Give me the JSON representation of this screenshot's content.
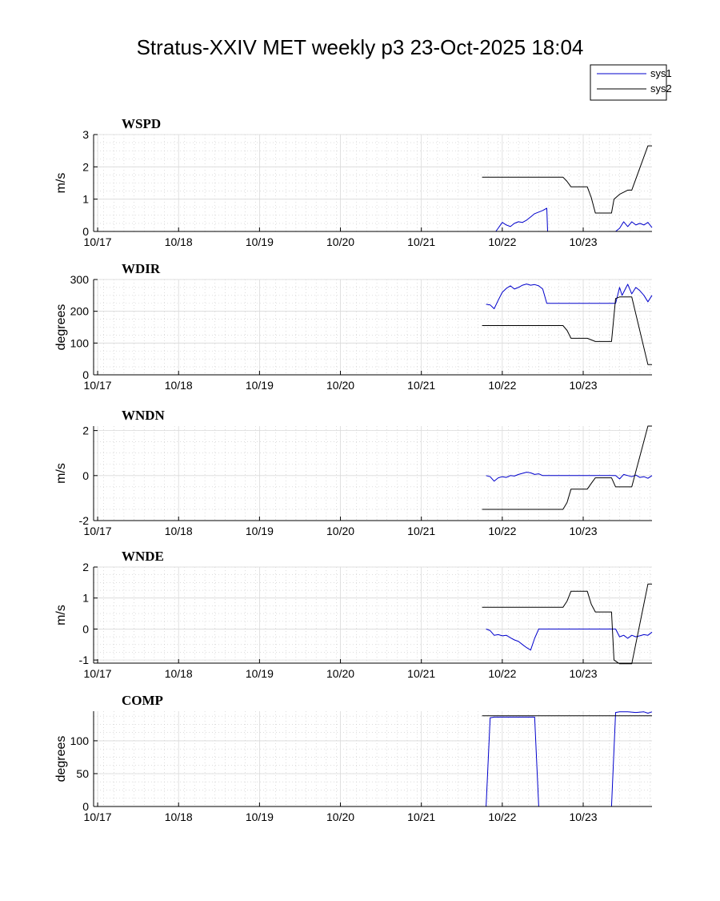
{
  "figure": {
    "title": "Stratus-XXIV MET weekly p3 23-Oct-2025 18:04",
    "legend": {
      "placement": "top-right",
      "entries": [
        {
          "name": "sys1",
          "color": "#0000cc"
        },
        {
          "name": "sys2",
          "color": "#000000"
        }
      ]
    }
  },
  "chart_data": [
    {
      "type": "line",
      "title": "WSPD",
      "ylabel": "m/s",
      "xlim": [
        -0.05,
        6.85
      ],
      "ylim": [
        0,
        3
      ],
      "yticks": [
        0,
        1,
        2,
        3
      ],
      "xticks": [
        0,
        1,
        2,
        3,
        4,
        5,
        6
      ],
      "xtick_labels": [
        "10/17",
        "10/18",
        "10/19",
        "10/20",
        "10/21",
        "10/22",
        "10/23"
      ],
      "grid": true,
      "series": [
        {
          "name": "sys1",
          "color": "#0000cc",
          "x": [
            4.85,
            4.92,
            5.0,
            5.05,
            5.1,
            5.15,
            5.2,
            5.25,
            5.3,
            5.35,
            5.4,
            5.45,
            5.5,
            5.55,
            5.56,
            5.6,
            5.7,
            5.8,
            5.9,
            6.0,
            6.1,
            6.2,
            6.3,
            6.4,
            6.45,
            6.5,
            6.55,
            6.6,
            6.65,
            6.7,
            6.75,
            6.8,
            6.85
          ],
          "y": [
            0.0,
            0.0,
            0.28,
            0.2,
            0.15,
            0.25,
            0.3,
            0.28,
            0.35,
            0.45,
            0.55,
            0.6,
            0.65,
            0.72,
            0.0,
            0.0,
            0.0,
            0.0,
            0.0,
            0.0,
            0.0,
            0.0,
            0.0,
            0.0,
            0.1,
            0.3,
            0.15,
            0.3,
            0.2,
            0.25,
            0.2,
            0.28,
            0.12
          ]
        },
        {
          "name": "sys2",
          "color": "#000000",
          "x": [
            4.75,
            5.0,
            5.5,
            5.75,
            5.8,
            5.85,
            6.05,
            6.1,
            6.15,
            6.35,
            6.38,
            6.45,
            6.55,
            6.6,
            6.8,
            6.85
          ],
          "y": [
            1.68,
            1.68,
            1.68,
            1.68,
            1.55,
            1.38,
            1.38,
            1.05,
            0.57,
            0.57,
            1.0,
            1.15,
            1.28,
            1.28,
            2.65,
            2.65
          ]
        }
      ]
    },
    {
      "type": "line",
      "title": "WDIR",
      "ylabel": "degrees",
      "xlim": [
        -0.05,
        6.85
      ],
      "ylim": [
        0,
        300
      ],
      "yticks": [
        0,
        100,
        200,
        300
      ],
      "xticks": [
        0,
        1,
        2,
        3,
        4,
        5,
        6
      ],
      "xtick_labels": [
        "10/17",
        "10/18",
        "10/19",
        "10/20",
        "10/21",
        "10/22",
        "10/23"
      ],
      "grid": true,
      "series": [
        {
          "name": "sys1",
          "color": "#0000cc",
          "x": [
            4.8,
            4.85,
            4.9,
            4.95,
            5.0,
            5.05,
            5.1,
            5.15,
            5.2,
            5.25,
            5.3,
            5.35,
            5.4,
            5.45,
            5.5,
            5.55,
            5.6,
            5.65,
            5.7,
            5.8,
            5.9,
            6.0,
            6.1,
            6.2,
            6.3,
            6.4,
            6.42,
            6.45,
            6.48,
            6.5,
            6.55,
            6.6,
            6.65,
            6.7,
            6.75,
            6.8,
            6.85
          ],
          "y": [
            222,
            220,
            208,
            235,
            260,
            272,
            280,
            270,
            275,
            282,
            286,
            282,
            284,
            280,
            270,
            225,
            225,
            225,
            225,
            225,
            225,
            225,
            225,
            225,
            225,
            225,
            245,
            275,
            250,
            260,
            285,
            255,
            275,
            265,
            250,
            230,
            250
          ]
        },
        {
          "name": "sys2",
          "color": "#000000",
          "x": [
            4.75,
            5.0,
            5.5,
            5.75,
            5.8,
            5.85,
            6.05,
            6.1,
            6.15,
            6.35,
            6.4,
            6.45,
            6.55,
            6.6,
            6.8,
            6.85
          ],
          "y": [
            155,
            155,
            155,
            155,
            140,
            115,
            115,
            110,
            105,
            105,
            240,
            245,
            245,
            245,
            32,
            32
          ]
        }
      ]
    },
    {
      "type": "line",
      "title": "WNDN",
      "ylabel": "m/s",
      "xlim": [
        -0.05,
        6.85
      ],
      "ylim": [
        -2,
        2.2
      ],
      "yticks": [
        -2,
        0,
        2
      ],
      "xticks": [
        0,
        1,
        2,
        3,
        4,
        5,
        6
      ],
      "xtick_labels": [
        "10/17",
        "10/18",
        "10/19",
        "10/20",
        "10/21",
        "10/22",
        "10/23"
      ],
      "grid": true,
      "series": [
        {
          "name": "sys1",
          "color": "#0000cc",
          "x": [
            4.8,
            4.85,
            4.9,
            4.95,
            5.0,
            5.05,
            5.1,
            5.15,
            5.2,
            5.25,
            5.3,
            5.35,
            5.4,
            5.45,
            5.5,
            5.55,
            5.6,
            5.7,
            5.8,
            5.9,
            6.0,
            6.1,
            6.2,
            6.3,
            6.4,
            6.45,
            6.5,
            6.55,
            6.6,
            6.65,
            6.7,
            6.75,
            6.8,
            6.85
          ],
          "y": [
            0.0,
            -0.05,
            -0.25,
            -0.1,
            -0.05,
            -0.08,
            0.0,
            -0.02,
            0.05,
            0.1,
            0.15,
            0.12,
            0.05,
            0.08,
            0.0,
            0.0,
            0.0,
            0.0,
            0.0,
            0.0,
            0.0,
            0.0,
            0.0,
            0.0,
            0.0,
            -0.15,
            0.05,
            0.0,
            -0.05,
            0.02,
            -0.08,
            -0.05,
            -0.12,
            0.0
          ]
        },
        {
          "name": "sys2",
          "color": "#000000",
          "x": [
            4.75,
            5.0,
            5.5,
            5.75,
            5.8,
            5.85,
            6.05,
            6.1,
            6.15,
            6.35,
            6.4,
            6.45,
            6.55,
            6.6,
            6.8,
            6.85
          ],
          "y": [
            -1.5,
            -1.5,
            -1.5,
            -1.5,
            -1.2,
            -0.6,
            -0.6,
            -0.35,
            -0.1,
            -0.1,
            -0.5,
            -0.5,
            -0.5,
            -0.5,
            2.2,
            2.2
          ]
        }
      ]
    },
    {
      "type": "line",
      "title": "WNDE",
      "ylabel": "m/s",
      "xlim": [
        -0.05,
        6.85
      ],
      "ylim": [
        -1.1,
        2
      ],
      "yticks": [
        -1,
        0,
        1,
        2
      ],
      "xticks": [
        0,
        1,
        2,
        3,
        4,
        5,
        6
      ],
      "xtick_labels": [
        "10/17",
        "10/18",
        "10/19",
        "10/20",
        "10/21",
        "10/22",
        "10/23"
      ],
      "grid": true,
      "series": [
        {
          "name": "sys1",
          "color": "#0000cc",
          "x": [
            4.8,
            4.85,
            4.9,
            4.95,
            5.0,
            5.05,
            5.1,
            5.15,
            5.2,
            5.25,
            5.3,
            5.35,
            5.4,
            5.45,
            5.5,
            5.55,
            5.6,
            5.7,
            5.8,
            5.9,
            6.0,
            6.1,
            6.2,
            6.3,
            6.4,
            6.45,
            6.5,
            6.55,
            6.6,
            6.65,
            6.7,
            6.75,
            6.8,
            6.85
          ],
          "y": [
            0.0,
            -0.05,
            -0.2,
            -0.18,
            -0.22,
            -0.2,
            -0.28,
            -0.35,
            -0.4,
            -0.5,
            -0.6,
            -0.68,
            -0.3,
            0.0,
            0.0,
            0.0,
            0.0,
            0.0,
            0.0,
            0.0,
            0.0,
            0.0,
            0.0,
            0.0,
            0.0,
            -0.25,
            -0.2,
            -0.3,
            -0.2,
            -0.25,
            -0.22,
            -0.18,
            -0.2,
            -0.1
          ]
        },
        {
          "name": "sys2",
          "color": "#000000",
          "x": [
            4.75,
            5.0,
            5.5,
            5.75,
            5.8,
            5.85,
            6.05,
            6.1,
            6.15,
            6.35,
            6.38,
            6.45,
            6.55,
            6.6,
            6.8,
            6.85
          ],
          "y": [
            0.7,
            0.7,
            0.7,
            0.7,
            0.9,
            1.22,
            1.22,
            0.8,
            0.55,
            0.55,
            -1.0,
            -1.12,
            -1.12,
            -1.12,
            1.45,
            1.45
          ]
        }
      ]
    },
    {
      "type": "line",
      "title": "COMP",
      "ylabel": "degrees",
      "xlim": [
        -0.05,
        6.85
      ],
      "ylim": [
        0,
        145
      ],
      "yticks": [
        0,
        50,
        100
      ],
      "xticks": [
        0,
        1,
        2,
        3,
        4,
        5,
        6
      ],
      "xtick_labels": [
        "10/17",
        "10/18",
        "10/19",
        "10/20",
        "10/21",
        "10/22",
        "10/23"
      ],
      "grid": true,
      "series": [
        {
          "name": "sys1",
          "color": "#0000cc",
          "x": [
            4.8,
            4.85,
            4.9,
            5.0,
            5.2,
            5.4,
            5.45,
            5.5,
            5.6,
            5.8,
            6.0,
            6.2,
            6.35,
            6.4,
            6.45,
            6.55,
            6.65,
            6.75,
            6.8,
            6.85
          ],
          "y": [
            0,
            135,
            136,
            136,
            136,
            136,
            0,
            0,
            0,
            0,
            0,
            0,
            0,
            143,
            144,
            144,
            143,
            144,
            142,
            144
          ]
        },
        {
          "name": "sys2",
          "color": "#000000",
          "x": [
            4.75,
            5.5,
            6.0,
            6.5,
            6.85
          ],
          "y": [
            138,
            138,
            138,
            138,
            138
          ]
        }
      ]
    }
  ]
}
